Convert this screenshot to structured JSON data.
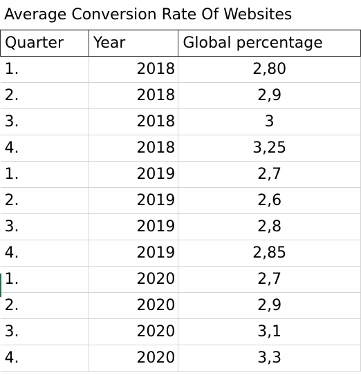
{
  "title": "Average Conversion Rate Of Websites",
  "headers": [
    "Quarter",
    "Year",
    "Global percentage"
  ],
  "rows": [
    [
      "1.",
      "2018",
      "2,80"
    ],
    [
      "2.",
      "2018",
      "2,9"
    ],
    [
      "3.",
      "2018",
      "3"
    ],
    [
      "4.",
      "2018",
      "3,25"
    ],
    [
      "1.",
      "2019",
      "2,7"
    ],
    [
      "2.",
      "2019",
      "2,6"
    ],
    [
      "3.",
      "2019",
      "2,8"
    ],
    [
      "4.",
      "2019",
      "2,85"
    ],
    [
      "1.",
      "2020",
      "2,7"
    ],
    [
      "2.",
      "2020",
      "2,9"
    ],
    [
      "3.",
      "2020",
      "3,1"
    ],
    [
      "4.",
      "2020",
      "3,3"
    ]
  ],
  "colors": {
    "gridline": "#d4d4d4",
    "header_border": "#2b2b2b",
    "selection": "#1e7145"
  }
}
